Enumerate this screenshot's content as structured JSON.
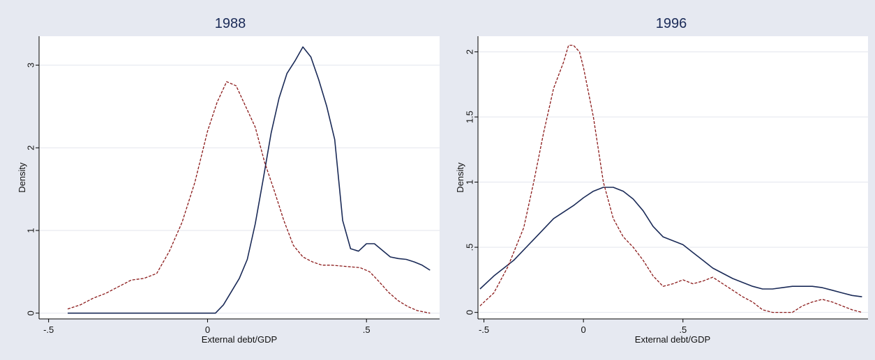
{
  "chart_data": [
    {
      "type": "line",
      "title": "1988",
      "xlabel": "External debt/GDP",
      "ylabel": "Density",
      "xlim": [
        -0.53,
        0.73
      ],
      "ylim": [
        -0.07,
        3.35
      ],
      "xticks": [
        {
          "value": -0.5,
          "label": "-.5"
        },
        {
          "value": 0,
          "label": "0"
        },
        {
          "value": 0.5,
          "label": ".5"
        }
      ],
      "yticks": [
        {
          "value": 0,
          "label": "0"
        },
        {
          "value": 1,
          "label": "1"
        },
        {
          "value": 2,
          "label": "2"
        },
        {
          "value": 3,
          "label": "3"
        }
      ],
      "grid": true,
      "series": [
        {
          "style": "solid",
          "color": "#1a2a57",
          "x": [
            -0.44,
            -0.3,
            -0.15,
            0.0,
            0.025,
            0.05,
            0.075,
            0.1,
            0.125,
            0.15,
            0.175,
            0.2,
            0.225,
            0.25,
            0.275,
            0.3,
            0.325,
            0.35,
            0.375,
            0.4,
            0.425,
            0.45,
            0.475,
            0.5,
            0.525,
            0.55,
            0.575,
            0.6,
            0.625,
            0.65,
            0.675,
            0.7
          ],
          "y": [
            0.0,
            0.0,
            0.0,
            0.0,
            0.0,
            0.1,
            0.26,
            0.42,
            0.65,
            1.08,
            1.62,
            2.18,
            2.6,
            2.9,
            3.05,
            3.22,
            3.1,
            2.82,
            2.5,
            2.1,
            1.12,
            0.78,
            0.75,
            0.84,
            0.84,
            0.76,
            0.68,
            0.66,
            0.65,
            0.62,
            0.58,
            0.52
          ]
        },
        {
          "style": "dashed",
          "color": "#8b1a1a",
          "x": [
            -0.44,
            -0.4,
            -0.36,
            -0.32,
            -0.28,
            -0.24,
            -0.2,
            -0.16,
            -0.12,
            -0.08,
            -0.04,
            0.0,
            0.03,
            0.06,
            0.09,
            0.12,
            0.15,
            0.18,
            0.21,
            0.24,
            0.27,
            0.3,
            0.33,
            0.36,
            0.39,
            0.42,
            0.45,
            0.48,
            0.51,
            0.54,
            0.57,
            0.6,
            0.63,
            0.66,
            0.7
          ],
          "y": [
            0.05,
            0.1,
            0.18,
            0.24,
            0.32,
            0.4,
            0.42,
            0.48,
            0.75,
            1.1,
            1.58,
            2.2,
            2.55,
            2.8,
            2.75,
            2.5,
            2.25,
            1.82,
            1.48,
            1.12,
            0.82,
            0.68,
            0.62,
            0.58,
            0.58,
            0.57,
            0.56,
            0.55,
            0.5,
            0.38,
            0.25,
            0.15,
            0.08,
            0.03,
            0.0
          ]
        }
      ]
    },
    {
      "type": "line",
      "title": "1996",
      "xlabel": "External debt/GDP",
      "ylabel": "Density",
      "xlim": [
        -0.53,
        1.43
      ],
      "ylim": [
        -0.05,
        2.12
      ],
      "xticks": [
        {
          "value": -0.5,
          "label": "-.5"
        },
        {
          "value": 0,
          "label": "0"
        },
        {
          "value": 0.5,
          "label": ".5"
        }
      ],
      "yticks": [
        {
          "value": 0,
          "label": "0"
        },
        {
          "value": 0.5,
          "label": ".5"
        },
        {
          "value": 1,
          "label": "1"
        },
        {
          "value": 1.5,
          "label": "1.5"
        },
        {
          "value": 2,
          "label": "2"
        }
      ],
      "grid": true,
      "series": [
        {
          "style": "solid",
          "color": "#1a2a57",
          "x": [
            -0.52,
            -0.45,
            -0.35,
            -0.25,
            -0.15,
            -0.05,
            0.0,
            0.05,
            0.1,
            0.15,
            0.2,
            0.25,
            0.3,
            0.35,
            0.4,
            0.45,
            0.5,
            0.55,
            0.6,
            0.65,
            0.7,
            0.75,
            0.8,
            0.85,
            0.9,
            0.95,
            1.0,
            1.05,
            1.1,
            1.15,
            1.2,
            1.25,
            1.3,
            1.35,
            1.4
          ],
          "y": [
            0.18,
            0.28,
            0.4,
            0.56,
            0.72,
            0.82,
            0.88,
            0.93,
            0.96,
            0.96,
            0.93,
            0.87,
            0.78,
            0.66,
            0.58,
            0.55,
            0.52,
            0.46,
            0.4,
            0.34,
            0.3,
            0.26,
            0.23,
            0.2,
            0.18,
            0.18,
            0.19,
            0.2,
            0.2,
            0.2,
            0.19,
            0.17,
            0.15,
            0.13,
            0.12
          ]
        },
        {
          "style": "dashed",
          "color": "#8b1a1a",
          "x": [
            -0.52,
            -0.45,
            -0.38,
            -0.3,
            -0.25,
            -0.2,
            -0.15,
            -0.1,
            -0.075,
            -0.05,
            -0.02,
            0.0,
            0.05,
            0.1,
            0.15,
            0.2,
            0.25,
            0.3,
            0.35,
            0.4,
            0.45,
            0.5,
            0.55,
            0.6,
            0.65,
            0.7,
            0.75,
            0.8,
            0.85,
            0.9,
            0.95,
            1.0,
            1.05,
            1.1,
            1.15,
            1.2,
            1.25,
            1.3,
            1.35,
            1.4
          ],
          "y": [
            0.05,
            0.15,
            0.35,
            0.65,
            1.0,
            1.38,
            1.72,
            1.92,
            2.05,
            2.05,
            2.0,
            1.88,
            1.5,
            1.0,
            0.72,
            0.58,
            0.5,
            0.4,
            0.28,
            0.2,
            0.22,
            0.25,
            0.22,
            0.24,
            0.27,
            0.22,
            0.17,
            0.12,
            0.08,
            0.02,
            0.0,
            0.0,
            0.0,
            0.05,
            0.08,
            0.1,
            0.08,
            0.05,
            0.02,
            0.0
          ]
        }
      ]
    }
  ]
}
